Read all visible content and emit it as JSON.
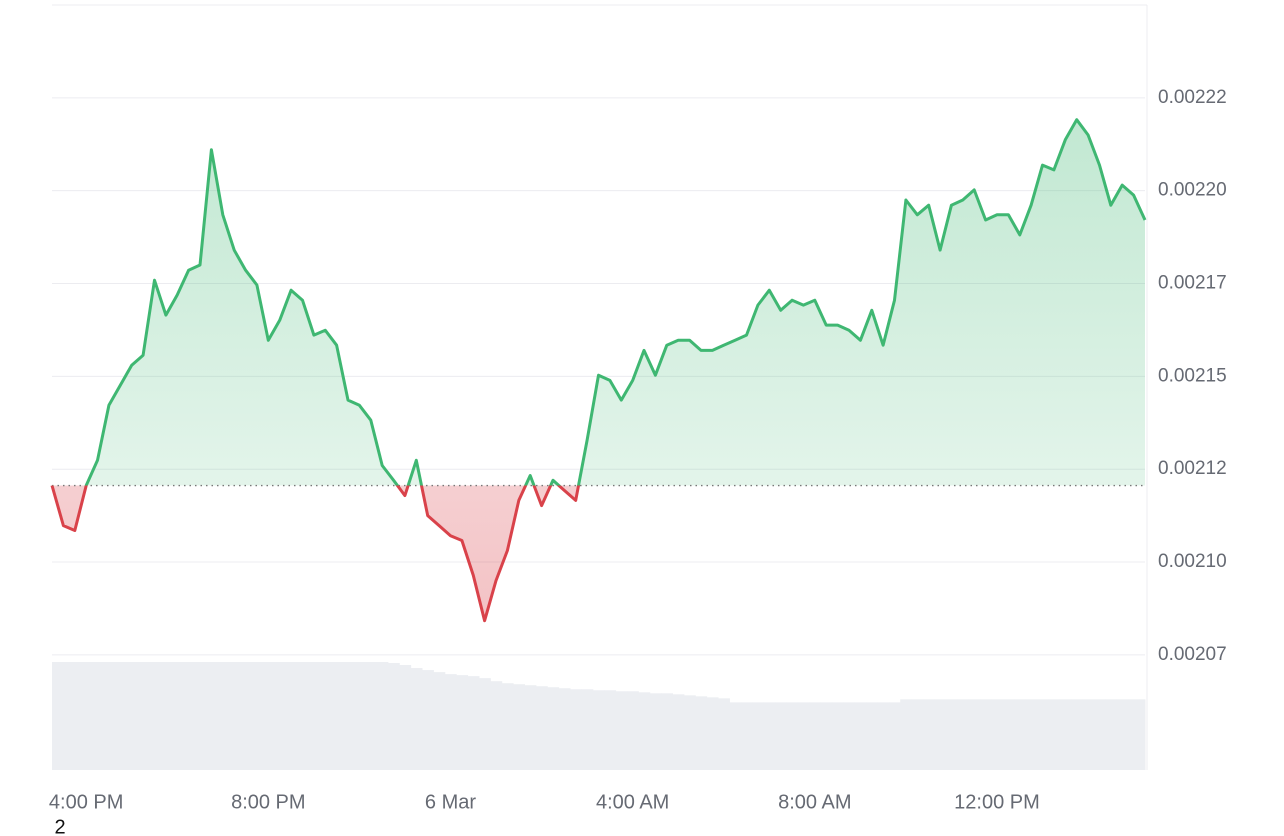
{
  "chart_data": {
    "type": "price-line",
    "x": [
      15.25,
      15.5,
      15.75,
      16,
      16.25,
      16.5,
      16.75,
      17,
      17.25,
      17.5,
      17.75,
      18,
      18.25,
      18.5,
      18.75,
      19,
      19.25,
      19.5,
      19.75,
      20,
      20.25,
      20.5,
      20.75,
      21,
      21.25,
      21.5,
      21.75,
      22,
      22.25,
      22.5,
      22.75,
      23,
      23.25,
      23.5,
      23.75,
      24,
      24.25,
      24.5,
      24.75,
      25,
      25.25,
      25.5,
      25.75,
      26,
      26.25,
      26.5,
      26.75,
      27,
      27.25,
      27.5,
      27.75,
      28,
      28.25,
      28.5,
      28.75,
      29,
      29.25,
      29.5,
      29.75,
      30,
      30.25,
      30.5,
      30.75,
      31,
      31.25,
      31.5,
      31.75,
      32,
      32.25,
      32.5,
      32.75,
      33,
      33.25,
      33.5,
      33.75,
      34,
      34.25,
      34.5,
      34.75,
      35,
      35.25,
      35.5,
      35.75,
      36,
      36.25,
      36.5,
      36.75,
      37,
      37.25,
      37.5,
      37.75,
      38,
      38.25,
      38.5,
      38.75,
      39,
      39.25
    ],
    "values": [
      0.0021206,
      0.0021098,
      0.0021085,
      0.0021206,
      0.0021274,
      0.0021422,
      0.0021476,
      0.002153,
      0.0021557,
      0.0021759,
      0.0021665,
      0.0021719,
      0.0021786,
      0.00218,
      0.002211,
      0.0021935,
      0.002184,
      0.0021786,
      0.0021746,
      0.0021597,
      0.0021651,
      0.0021732,
      0.0021705,
      0.0021611,
      0.0021624,
      0.0021584,
      0.0021436,
      0.0021422,
      0.0021382,
      0.002126,
      0.002122,
      0.0021179,
      0.0021274,
      0.0021125,
      0.0021098,
      0.0021071,
      0.0021058,
      0.0020964,
      0.0020842,
      0.002095,
      0.0021031,
      0.0021166,
      0.0021233,
      0.0021152,
      0.002122,
      0.0021193,
      0.0021166,
      0.0021328,
      0.0021503,
      0.0021489,
      0.0021436,
      0.0021489,
      0.002157,
      0.0021503,
      0.0021584,
      0.0021597,
      0.0021597,
      0.002157,
      0.002157,
      0.0021584,
      0.0021597,
      0.0021611,
      0.0021692,
      0.0021732,
      0.0021678,
      0.0021705,
      0.0021692,
      0.0021705,
      0.0021638,
      0.0021638,
      0.0021624,
      0.0021597,
      0.0021678,
      0.0021584,
      0.0021705,
      0.0021975,
      0.0021935,
      0.0021961,
      0.002184,
      0.0021961,
      0.0021975,
      0.0022002,
      0.0021921,
      0.0021935,
      0.0021935,
      0.0021881,
      0.0021961,
      0.0022069,
      0.0022056,
      0.0022137,
      0.0022191,
      0.002215,
      0.0022069,
      0.0021961,
      0.0022015,
      0.0021988,
      0.0021921
    ],
    "colors": {
      "up": "#3fb772",
      "down": "#d9424a",
      "volume": "#eceef2"
    },
    "volume": {
      "values": [
        107,
        107,
        107,
        107,
        107,
        107,
        107,
        107,
        107,
        107,
        107,
        107,
        107,
        107,
        107,
        107,
        107,
        107,
        107,
        107,
        107,
        107,
        107,
        107,
        107,
        107,
        107,
        107,
        107,
        107,
        106,
        104,
        101,
        99,
        97,
        95,
        94,
        93,
        91,
        88,
        86,
        85,
        84,
        83,
        82,
        81,
        80,
        80,
        79,
        79,
        78,
        78,
        77,
        76,
        76,
        75,
        74,
        73,
        72,
        71,
        67,
        67,
        67,
        67,
        67,
        67,
        67,
        67,
        67,
        67,
        67,
        67,
        67,
        67,
        67,
        70,
        70,
        70,
        70,
        70,
        70,
        70,
        70,
        70,
        70,
        70,
        70,
        70,
        70,
        70,
        70,
        70,
        70,
        70,
        70,
        70,
        70
      ]
    },
    "xlim": [
      15.25,
      39.25
    ],
    "xticks": [
      {
        "value": 16,
        "label": "4:00 PM"
      },
      {
        "value": 20,
        "label": "8:00 PM"
      },
      {
        "value": 24,
        "label": "6 Mar"
      },
      {
        "value": 28,
        "label": "4:00 AM"
      },
      {
        "value": 32,
        "label": "8:00 AM"
      },
      {
        "value": 36,
        "label": "12:00 PM"
      }
    ],
    "ylim": [
      0.002044,
      0.00225
    ],
    "yticks": [
      {
        "value": 0.002225,
        "label": "0.00222"
      },
      {
        "value": 0.0022,
        "label": "0.00220"
      },
      {
        "value": 0.002175,
        "label": "0.00217"
      },
      0.00215,
      {
        "value": 0.002125,
        "label": "0.00212"
      },
      {
        "value": 0.0021,
        "label": "0.00210"
      },
      {
        "value": 0.002075,
        "label": "0.00207"
      }
    ],
    "grid": true,
    "footer_text": "2"
  }
}
